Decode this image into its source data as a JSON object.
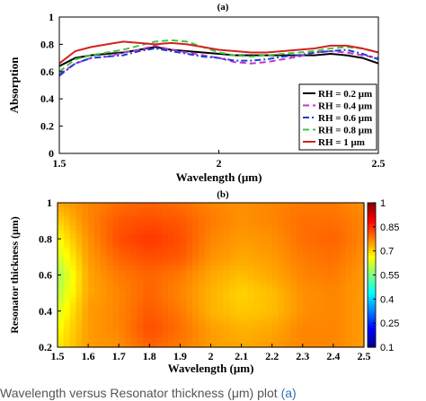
{
  "caption": {
    "text": "Wavelength versus Resonator thickness (μm) plot",
    "link_text": "(a)"
  },
  "chart_data": [
    {
      "type": "line",
      "panel_label": "(a)",
      "xlabel": "Wavelength (μm)",
      "ylabel": "Absorption",
      "xlim": [
        1.5,
        2.5
      ],
      "ylim": [
        0,
        1
      ],
      "xticks": [
        "1.5",
        "2",
        "2.5"
      ],
      "yticks": [
        "0",
        "0.2",
        "0.4",
        "0.6",
        "0.8",
        "1"
      ],
      "legend_position": "bottom-right",
      "grid": false,
      "x": [
        1.5,
        1.55,
        1.6,
        1.65,
        1.7,
        1.75,
        1.8,
        1.85,
        1.9,
        1.95,
        2.0,
        2.05,
        2.1,
        2.15,
        2.2,
        2.25,
        2.3,
        2.35,
        2.4,
        2.45,
        2.5
      ],
      "series": [
        {
          "name": "RH = 0.2 μm",
          "color": "#000000",
          "dash": "solid",
          "values": [
            0.64,
            0.7,
            0.72,
            0.73,
            0.74,
            0.76,
            0.78,
            0.76,
            0.75,
            0.74,
            0.73,
            0.72,
            0.72,
            0.72,
            0.72,
            0.72,
            0.72,
            0.73,
            0.72,
            0.7,
            0.66
          ]
        },
        {
          "name": "RH = 0.4 μm",
          "color": "#c832c8",
          "dash": "dash",
          "values": [
            0.58,
            0.66,
            0.7,
            0.71,
            0.74,
            0.76,
            0.79,
            0.76,
            0.74,
            0.72,
            0.7,
            0.67,
            0.66,
            0.67,
            0.69,
            0.71,
            0.74,
            0.75,
            0.74,
            0.72,
            0.7
          ]
        },
        {
          "name": "RH = 0.6 μm",
          "color": "#1a3fd6",
          "dash": "dashdot",
          "values": [
            0.57,
            0.66,
            0.7,
            0.71,
            0.72,
            0.75,
            0.77,
            0.75,
            0.73,
            0.71,
            0.7,
            0.68,
            0.68,
            0.69,
            0.71,
            0.72,
            0.74,
            0.75,
            0.76,
            0.73,
            0.69
          ]
        },
        {
          "name": "RH = 0.8 μm",
          "color": "#3cc83c",
          "dash": "dash",
          "values": [
            0.6,
            0.69,
            0.72,
            0.74,
            0.76,
            0.79,
            0.82,
            0.83,
            0.82,
            0.78,
            0.74,
            0.72,
            0.71,
            0.72,
            0.73,
            0.74,
            0.75,
            0.77,
            0.78,
            0.77,
            0.74
          ]
        },
        {
          "name": "RH = 1 μm",
          "color": "#d42020",
          "dash": "solid",
          "values": [
            0.66,
            0.75,
            0.78,
            0.8,
            0.82,
            0.81,
            0.8,
            0.81,
            0.8,
            0.78,
            0.76,
            0.75,
            0.74,
            0.74,
            0.75,
            0.76,
            0.77,
            0.79,
            0.79,
            0.77,
            0.74
          ]
        }
      ]
    },
    {
      "type": "heatmap",
      "panel_label": "(b)",
      "xlabel": "Wavelength (μm)",
      "ylabel": "Resonator thickness (μm)",
      "xlim": [
        1.5,
        2.5
      ],
      "ylim": [
        0.2,
        1
      ],
      "xticks": [
        "1.5",
        "1.6",
        "1.7",
        "1.8",
        "1.9",
        "2",
        "2.1",
        "2.2",
        "2.3",
        "2.4",
        "2.5"
      ],
      "yticks": [
        "0.2",
        "0.4",
        "0.6",
        "0.8",
        "1"
      ],
      "colorbar": {
        "min": 0.1,
        "max": 1,
        "ticks": [
          "0.1",
          "0.25",
          "0.4",
          "0.55",
          "0.7",
          "0.85",
          "1"
        ]
      },
      "x": [
        1.5,
        1.6,
        1.7,
        1.8,
        1.9,
        2.0,
        2.1,
        2.2,
        2.3,
        2.4,
        2.5
      ],
      "y": [
        1.0,
        0.9,
        0.8,
        0.7,
        0.6,
        0.5,
        0.4,
        0.3,
        0.2
      ],
      "z": [
        [
          0.74,
          0.77,
          0.79,
          0.8,
          0.79,
          0.77,
          0.76,
          0.77,
          0.78,
          0.78,
          0.76
        ],
        [
          0.7,
          0.77,
          0.81,
          0.82,
          0.81,
          0.78,
          0.76,
          0.77,
          0.79,
          0.79,
          0.77
        ],
        [
          0.66,
          0.76,
          0.82,
          0.84,
          0.82,
          0.77,
          0.75,
          0.76,
          0.79,
          0.8,
          0.77
        ],
        [
          0.62,
          0.75,
          0.8,
          0.82,
          0.81,
          0.76,
          0.74,
          0.75,
          0.78,
          0.79,
          0.76
        ],
        [
          0.58,
          0.74,
          0.78,
          0.8,
          0.78,
          0.74,
          0.72,
          0.74,
          0.77,
          0.78,
          0.75
        ],
        [
          0.6,
          0.74,
          0.77,
          0.8,
          0.77,
          0.73,
          0.7,
          0.72,
          0.76,
          0.77,
          0.75
        ],
        [
          0.63,
          0.75,
          0.77,
          0.81,
          0.78,
          0.73,
          0.71,
          0.72,
          0.76,
          0.77,
          0.75
        ],
        [
          0.66,
          0.75,
          0.77,
          0.82,
          0.79,
          0.75,
          0.73,
          0.74,
          0.77,
          0.77,
          0.75
        ],
        [
          0.68,
          0.75,
          0.76,
          0.8,
          0.78,
          0.75,
          0.74,
          0.75,
          0.77,
          0.77,
          0.75
        ]
      ]
    }
  ]
}
